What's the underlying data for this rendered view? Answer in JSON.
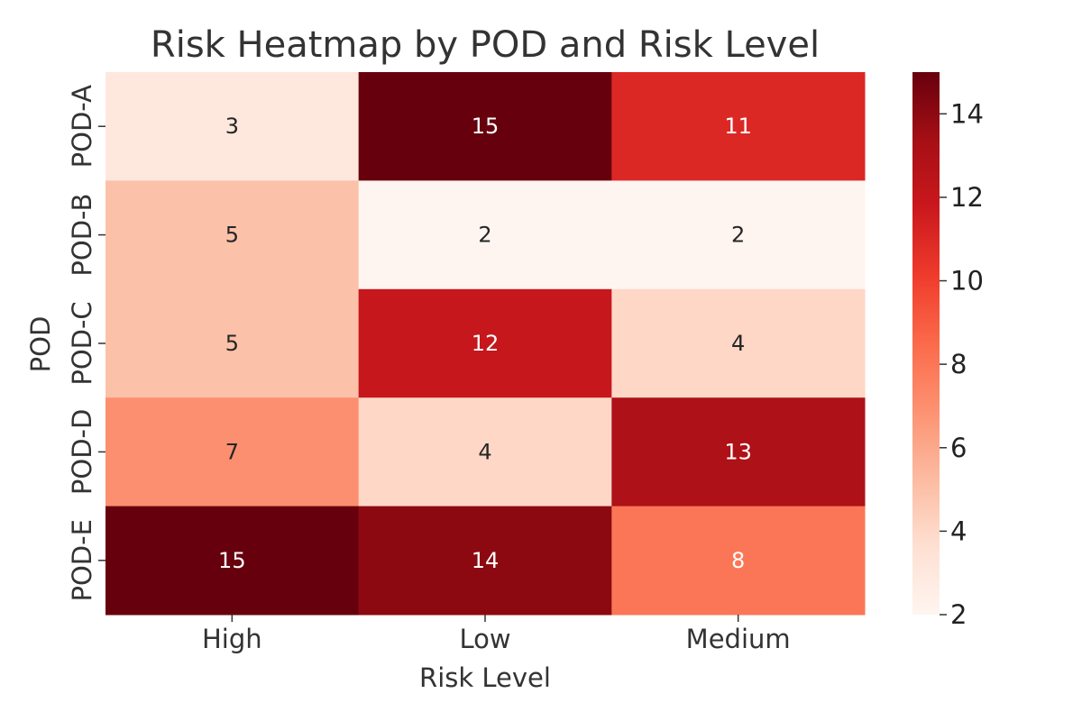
{
  "chart_data": {
    "type": "heatmap",
    "title": "Risk Heatmap by POD and Risk Level",
    "xlabel": "Risk Level",
    "ylabel": "POD",
    "x_categories": [
      "High",
      "Low",
      "Medium"
    ],
    "y_categories": [
      "POD-A",
      "POD-B",
      "POD-C",
      "POD-D",
      "POD-E"
    ],
    "values": [
      [
        3,
        15,
        11
      ],
      [
        5,
        2,
        2
      ],
      [
        5,
        12,
        4
      ],
      [
        7,
        4,
        13
      ],
      [
        15,
        14,
        8
      ]
    ],
    "annotate": true,
    "colormap": "Reds",
    "vmin": 2,
    "vmax": 15,
    "colorbar_ticks": [
      2,
      4,
      6,
      8,
      10,
      12,
      14
    ],
    "colors": {
      "light_text": "#ffffff",
      "dark_text": "#262626",
      "axis_text": "#333333"
    }
  }
}
